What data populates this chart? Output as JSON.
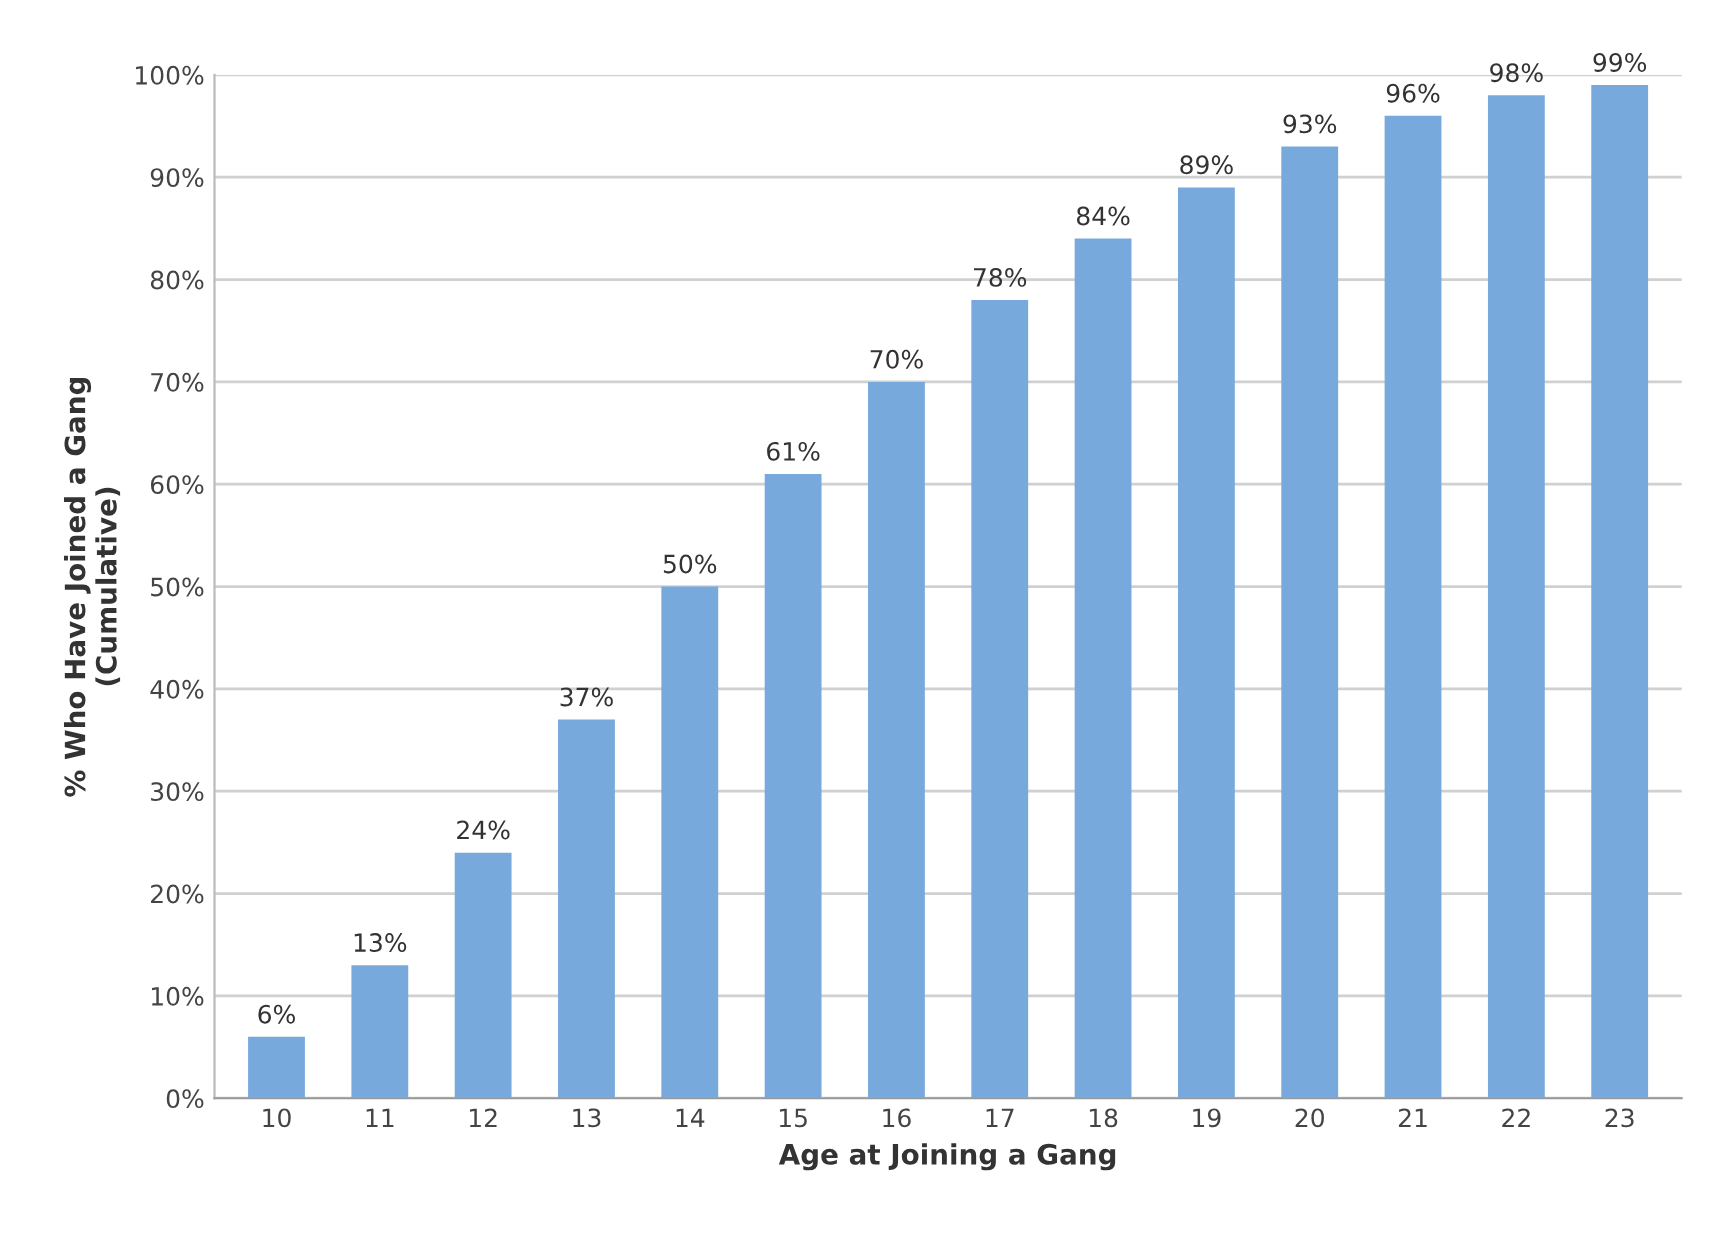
{
  "chart_data": {
    "type": "bar",
    "xlabel": "Age at Joining a Gang",
    "ylabel": "% Who Have Joined a Gang\n(Cumulative)",
    "categories": [
      "10",
      "11",
      "12",
      "13",
      "14",
      "15",
      "16",
      "17",
      "18",
      "19",
      "20",
      "21",
      "22",
      "23"
    ],
    "values": [
      6,
      13,
      24,
      37,
      50,
      61,
      70,
      78,
      84,
      89,
      93,
      96,
      98,
      99
    ],
    "value_labels": [
      "6%",
      "13%",
      "24%",
      "37%",
      "50%",
      "61%",
      "70%",
      "78%",
      "84%",
      "89%",
      "93%",
      "96%",
      "98%",
      "99%"
    ],
    "color": "#78a9dc",
    "ylim": [
      0,
      100
    ],
    "yticks": [
      {
        "value": 0,
        "label": "0%"
      },
      {
        "value": 10,
        "label": "10%"
      },
      {
        "value": 20,
        "label": "20%"
      },
      {
        "value": 30,
        "label": "30%"
      },
      {
        "value": 40,
        "label": "40%"
      },
      {
        "value": 50,
        "label": "50%"
      },
      {
        "value": 60,
        "label": "60%"
      },
      {
        "value": 70,
        "label": "70%"
      },
      {
        "value": 80,
        "label": "80%"
      },
      {
        "value": 90,
        "label": "90%"
      },
      {
        "value": 100,
        "label": "100%"
      }
    ],
    "grid": "y",
    "legend": false
  }
}
